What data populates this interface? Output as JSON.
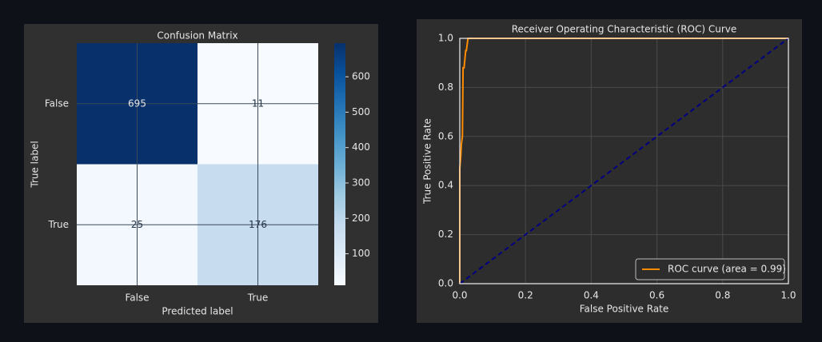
{
  "chart_data": [
    {
      "type": "heatmap",
      "title": "Confusion Matrix",
      "x_label": "Predicted label",
      "y_label": "True label",
      "x_categories": [
        "False",
        "True"
      ],
      "y_categories": [
        "False",
        "True"
      ],
      "values": [
        [
          695,
          11
        ],
        [
          25,
          176
        ]
      ],
      "colormap": "Blues",
      "clim": [
        11,
        695
      ],
      "cticks": [
        100,
        200,
        300,
        400,
        500,
        600
      ],
      "grid": true
    },
    {
      "type": "line",
      "title": "Receiver Operating Characteristic (ROC) Curve",
      "x_label": "False Positive Rate",
      "y_label": "True Positive Rate",
      "xlim": [
        0,
        1
      ],
      "ylim": [
        0,
        1
      ],
      "xticks": [
        {
          "value": 0,
          "label": "0.0"
        },
        0.2,
        0.4,
        0.6,
        0.8,
        {
          "value": 1,
          "label": "1.0"
        }
      ],
      "yticks": [
        {
          "value": 0,
          "label": "0.0"
        },
        0.2,
        0.4,
        0.6,
        0.8,
        {
          "value": 1,
          "label": "1.0"
        }
      ],
      "grid": true,
      "legend": "lower right",
      "series": [
        {
          "name": "ROC curve (area = 0.99)",
          "color": "#ff8c00",
          "x": [
            0,
            0,
            0.003,
            0.005,
            0.008,
            0.01,
            0.013,
            0.018,
            0.02,
            0.025,
            0.028,
            1
          ],
          "values": [
            0,
            0.47,
            0.52,
            0.57,
            0.6,
            0.88,
            0.88,
            0.95,
            0.95,
            1,
            1,
            1
          ]
        },
        {
          "color": "#000080",
          "dash": true,
          "x": [
            0,
            1
          ],
          "values": [
            0,
            1
          ]
        }
      ]
    }
  ]
}
